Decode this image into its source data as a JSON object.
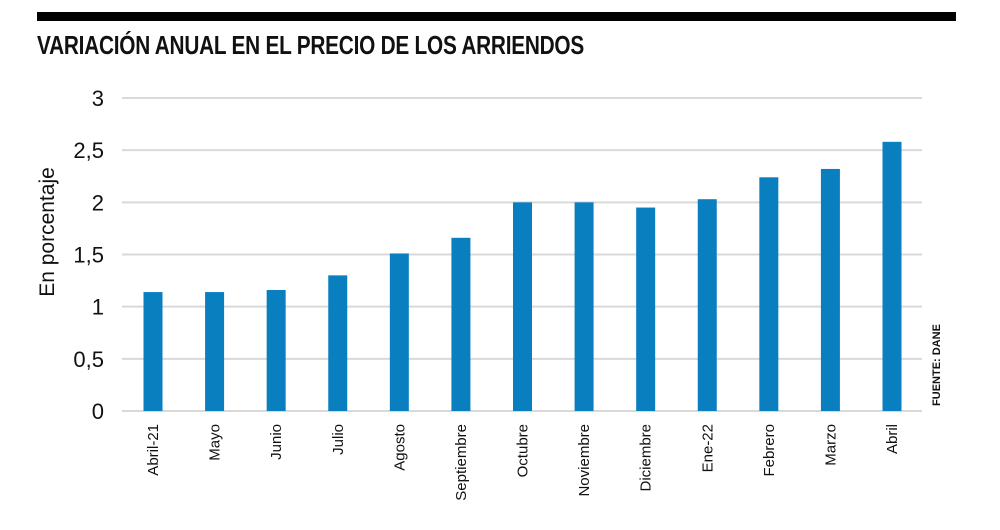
{
  "chart_data": {
    "type": "bar",
    "title": "VARIACIÓN ANUAL EN EL PRECIO DE LOS ARRIENDOS",
    "ylabel": "En porcentaje",
    "xlabel": "",
    "ylim": [
      0,
      3
    ],
    "yticks": [
      0,
      0.5,
      1,
      1.5,
      2,
      2.5,
      3
    ],
    "ytick_labels": [
      "0",
      "0,5",
      "1",
      "1,5",
      "2",
      "2,5",
      "3"
    ],
    "grid": true,
    "categories": [
      "Abril-21",
      "Mayo",
      "Junio",
      "Julio",
      "Agosto",
      "Septiembre",
      "Octubre",
      "Noviembre",
      "Diciembre",
      "Ene-22",
      "Febrero",
      "Marzo",
      "Abril"
    ],
    "values": [
      1.14,
      1.14,
      1.16,
      1.3,
      1.51,
      1.66,
      2.0,
      2.0,
      1.95,
      2.03,
      2.24,
      2.32,
      2.58
    ],
    "bar_color": "#0a7fc0",
    "grid_color": "#d9d9d9",
    "source": "FUENTE: DANE"
  }
}
